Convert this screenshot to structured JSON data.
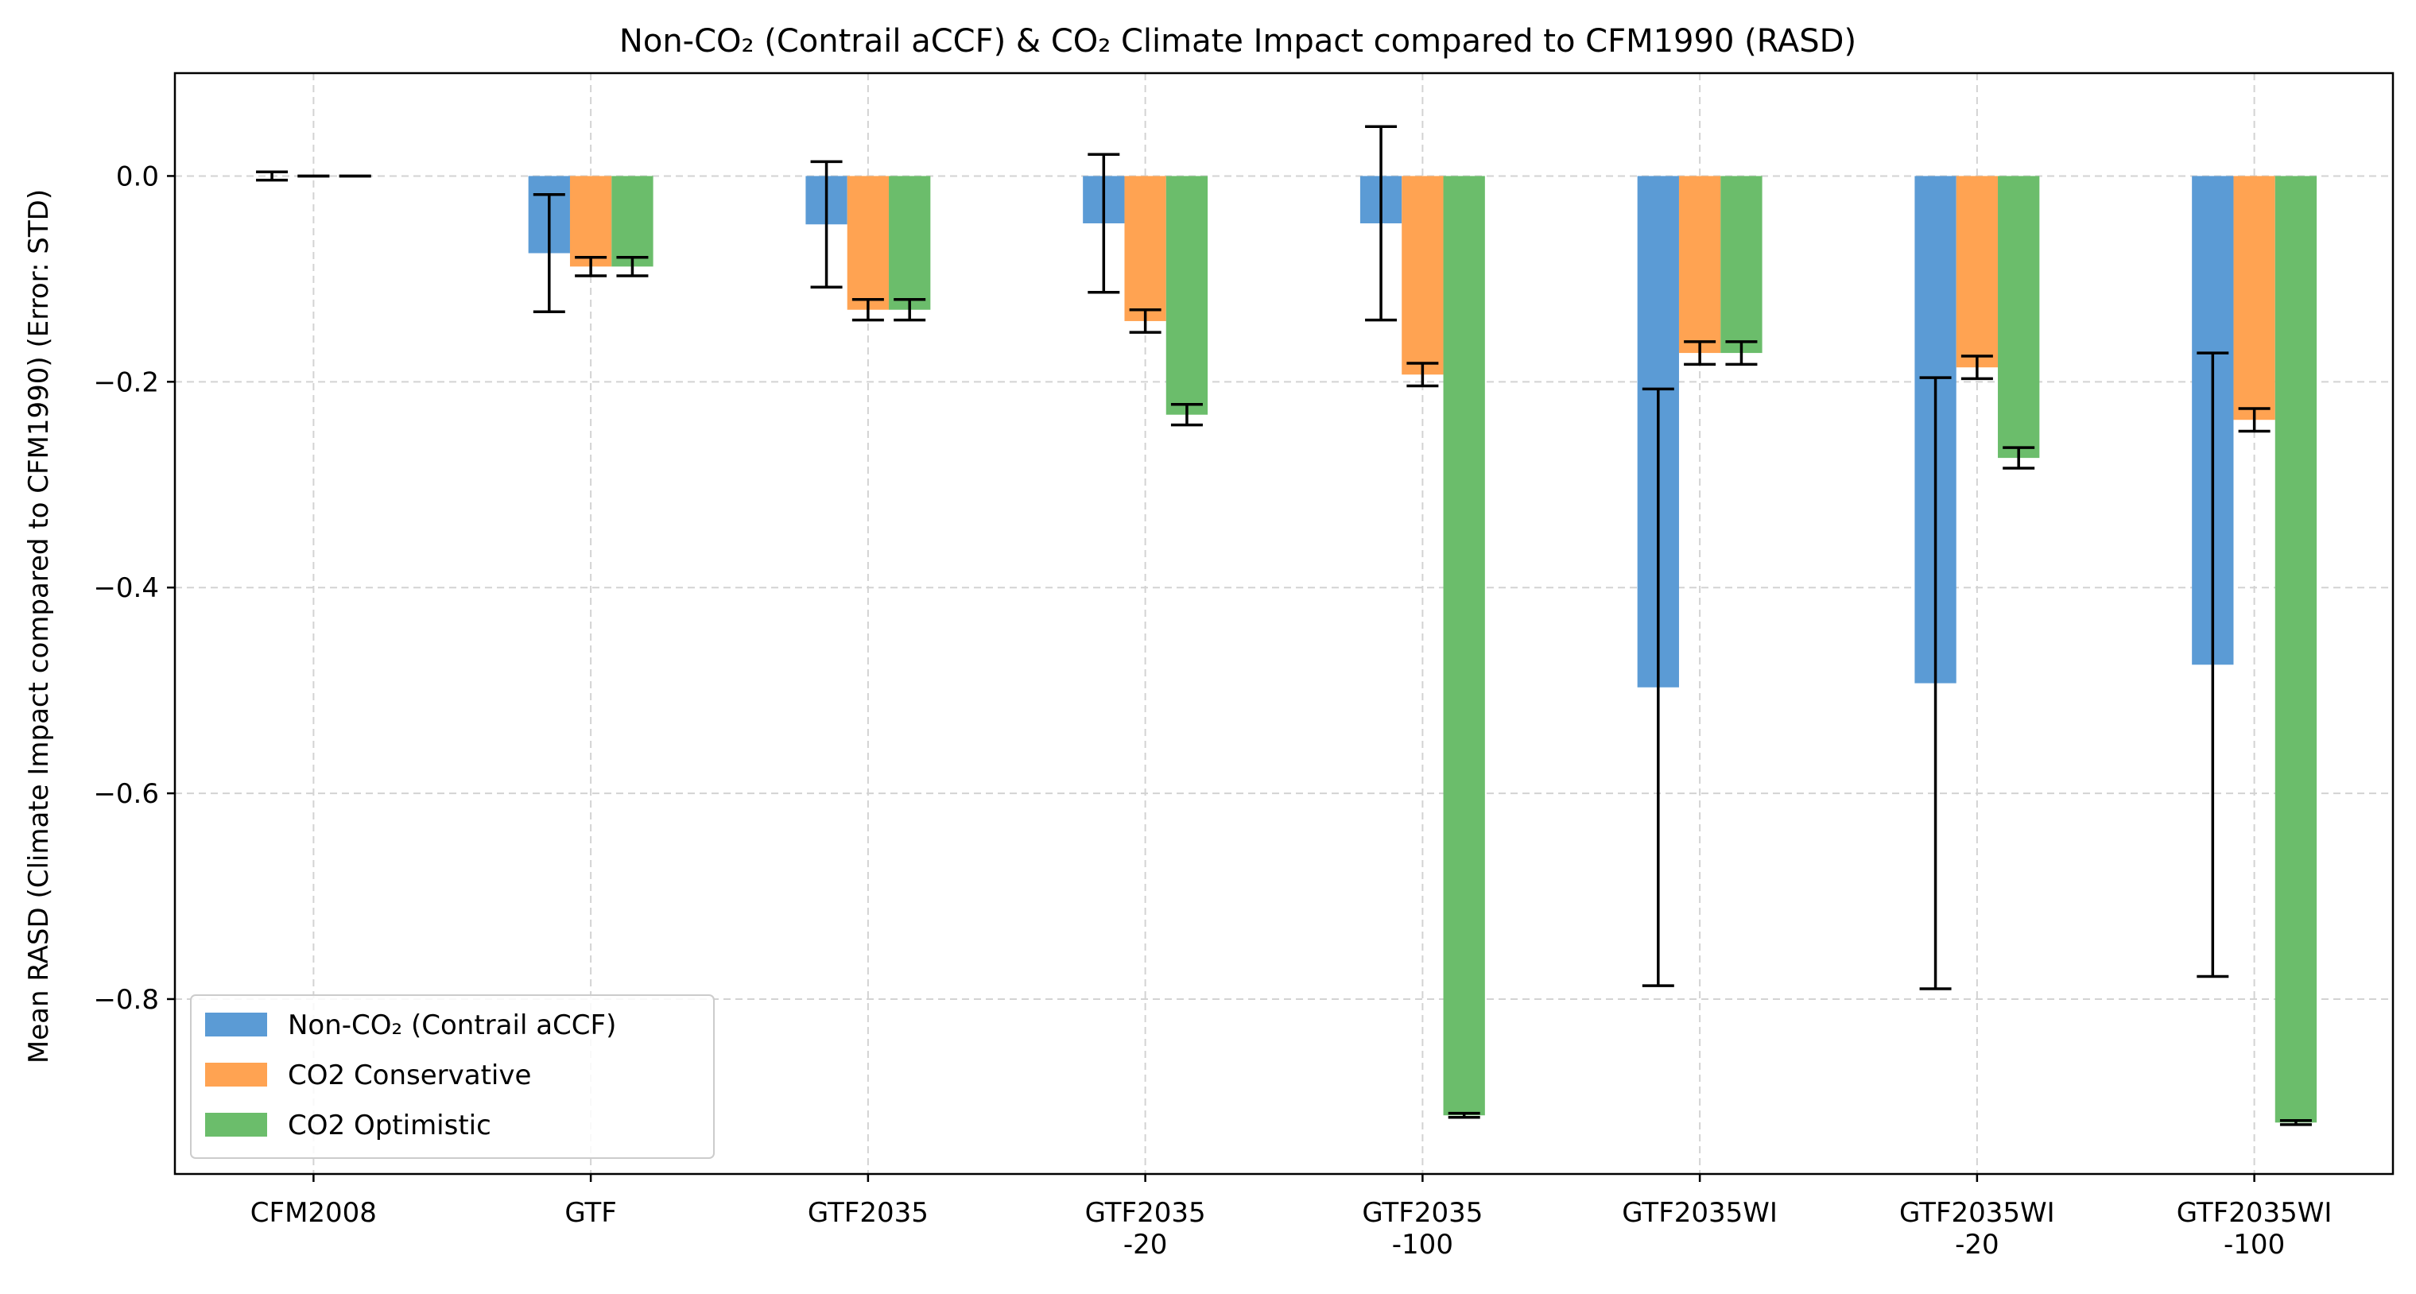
{
  "chart_data": {
    "type": "bar",
    "title": "Non-CO₂ (Contrail aCCF) & CO₂ Climate Impact compared to CFM1990 (RASD)",
    "xlabel": "",
    "ylabel": "Mean RASD (Climate Impact compared to CFM1990) (Error: STD)",
    "categories": [
      "CFM2008",
      "GTF",
      "GTF2035",
      "GTF2035\n-20",
      "GTF2035\n-100",
      "GTF2035WI",
      "GTF2035WI\n-20",
      "GTF2035WI\n-100"
    ],
    "ylim": [
      -0.97,
      0.1
    ],
    "yticks": [
      0.0,
      -0.2,
      -0.4,
      -0.6,
      -0.8
    ],
    "ytick_labels": [
      "0.0",
      "−0.2",
      "−0.4",
      "−0.6",
      "−0.8"
    ],
    "grid": true,
    "legend_position": "lower-left",
    "series": [
      {
        "name": "Non-CO₂ (Contrail aCCF)",
        "color": "#5b9bd5",
        "values": [
          0.0,
          -0.075,
          -0.047,
          -0.046,
          -0.046,
          -0.497,
          -0.493,
          -0.475
        ],
        "errors": [
          0.004,
          0.057,
          0.061,
          0.067,
          0.094,
          0.29,
          0.297,
          0.303
        ]
      },
      {
        "name": "CO2 Conservative",
        "color": "#ffa352",
        "values": [
          0.0,
          -0.088,
          -0.13,
          -0.141,
          -0.193,
          -0.172,
          -0.186,
          -0.237
        ],
        "errors": [
          0.0,
          0.009,
          0.01,
          0.011,
          0.011,
          0.011,
          0.011,
          0.011
        ]
      },
      {
        "name": "CO2 Optimistic",
        "color": "#6bbd6b",
        "values": [
          0.0,
          -0.088,
          -0.13,
          -0.232,
          -0.913,
          -0.172,
          -0.274,
          -0.92
        ],
        "errors": [
          0.0,
          0.009,
          0.01,
          0.01,
          0.002,
          0.011,
          0.01,
          0.002
        ]
      }
    ]
  }
}
